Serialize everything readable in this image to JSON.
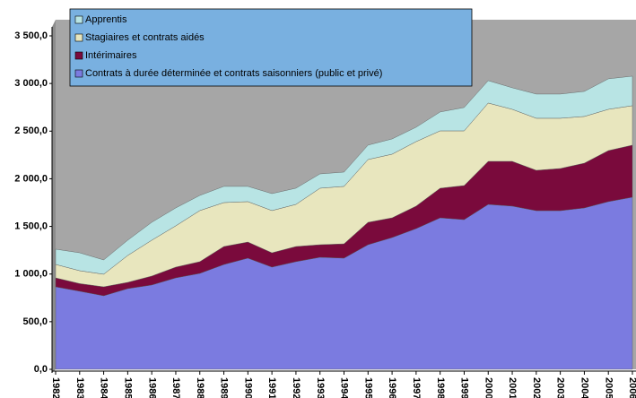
{
  "chart_data": {
    "type": "stacked_area",
    "categories": [
      "1982",
      "1983",
      "1984",
      "1985",
      "1986",
      "1987",
      "1988",
      "1989",
      "1990",
      "1991",
      "1992",
      "1993",
      "1994",
      "1995",
      "1996",
      "1997",
      "1998",
      "1999",
      "2000",
      "2001",
      "2002",
      "2003",
      "2004",
      "2005",
      "2006"
    ],
    "series": [
      {
        "name": "Contrats à durée déterminée et contrats saisonniers (public et privé)",
        "color": "#7b7be0",
        "values": [
          866,
          820,
          772,
          847,
          885,
          960,
          1007,
          1100,
          1167,
          1073,
          1130,
          1176,
          1167,
          1308,
          1383,
          1477,
          1590,
          1571,
          1731,
          1713,
          1665,
          1665,
          1694,
          1760,
          1807
        ]
      },
      {
        "name": "Intérimaires",
        "color": "#7a0a3c",
        "values": [
          94,
          80,
          94,
          66,
          94,
          113,
          123,
          189,
          169,
          150,
          159,
          132,
          150,
          235,
          207,
          236,
          311,
          358,
          452,
          470,
          424,
          443,
          470,
          536,
          546
        ]
      },
      {
        "name": "Stagiaires et contrats aidés",
        "color": "#e8e6be",
        "values": [
          141,
          135,
          132,
          282,
          376,
          433,
          536,
          461,
          424,
          443,
          442,
          593,
          603,
          659,
          668,
          677,
          602,
          574,
          612,
          546,
          546,
          527,
          490,
          433,
          414
        ]
      },
      {
        "name": "Apprentis",
        "color": "#b8e4e4",
        "values": [
          160,
          188,
          150,
          160,
          188,
          188,
          159,
          170,
          160,
          178,
          170,
          150,
          150,
          151,
          160,
          151,
          198,
          245,
          235,
          226,
          254,
          254,
          263,
          320,
          310
        ]
      }
    ],
    "ylim": [
      0,
      3500
    ],
    "yticks": [
      {
        "value": 0,
        "label": "0,0"
      },
      {
        "value": 500,
        "label": "500,0"
      },
      {
        "value": 1000,
        "label": "1 000,0"
      },
      {
        "value": 1500,
        "label": "1 500,0"
      },
      {
        "value": 2000,
        "label": "2 000,0"
      },
      {
        "value": 2500,
        "label": "2 500,0"
      },
      {
        "value": 3000,
        "label": "3 000,0"
      },
      {
        "value": 3500,
        "label": "3 500,0"
      }
    ],
    "legend": "top-left"
  }
}
